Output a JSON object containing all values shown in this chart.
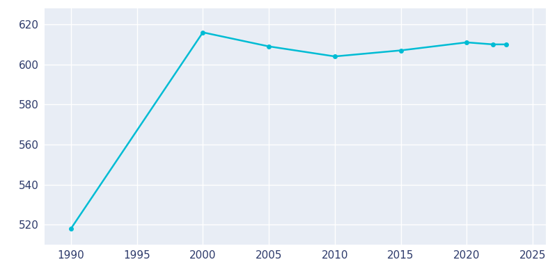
{
  "years": [
    1990,
    2000,
    2005,
    2010,
    2015,
    2020,
    2022,
    2023
  ],
  "population": [
    518,
    616,
    609,
    604,
    607,
    611,
    610,
    610
  ],
  "line_color": "#00BCD4",
  "marker": "o",
  "marker_size": 4,
  "line_width": 1.8,
  "fig_bg_color": "#FFFFFF",
  "plot_bg_color": "#E8EDF5",
  "grid_color": "white",
  "xlabel": "",
  "ylabel": "",
  "xlim": [
    1988,
    2026
  ],
  "ylim": [
    510,
    628
  ],
  "xticks": [
    1990,
    1995,
    2000,
    2005,
    2010,
    2015,
    2020,
    2025
  ],
  "yticks": [
    520,
    540,
    560,
    580,
    600,
    620
  ],
  "tick_color": "#2d3a6b",
  "tick_fontsize": 11
}
